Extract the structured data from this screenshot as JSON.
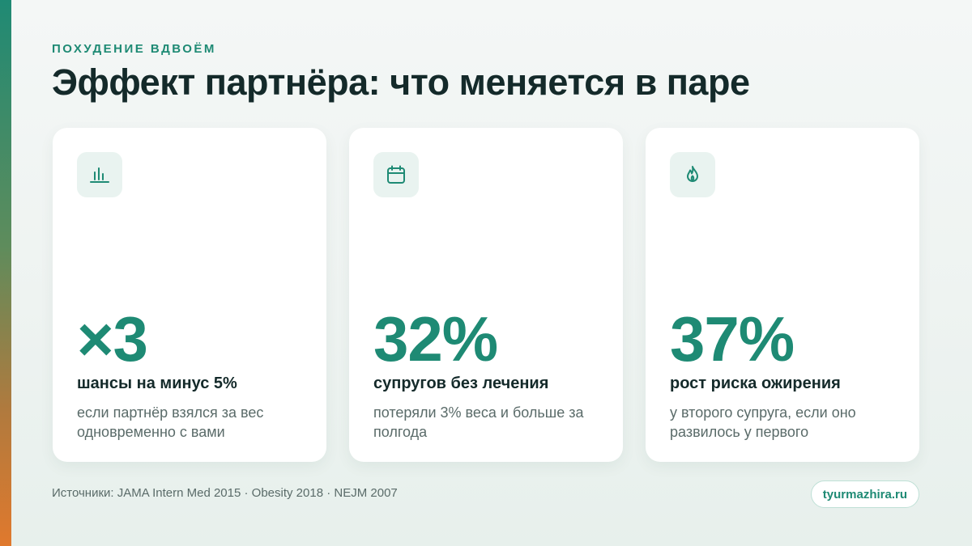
{
  "header": {
    "eyebrow": "ПОХУДЕНИЕ ВДВОЁМ",
    "title": "Эффект партнёра: что меняется в паре"
  },
  "cards": [
    {
      "icon": "bar-chart-icon",
      "value": "×3",
      "label": "шансы на минус 5%",
      "description": "если партнёр взялся за вес одновременно с вами"
    },
    {
      "icon": "calendar-icon",
      "value": "32%",
      "label": "супругов без лечения",
      "description": "потеряли 3% веса и больше за полгода"
    },
    {
      "icon": "flame-icon",
      "value": "37%",
      "label": "рост риска ожирения",
      "description": "у второго супруга, если оно развилось у первого"
    }
  ],
  "footer": {
    "sources": "Источники: JAMA Intern Med 2015 · Obesity 2018 · NEJM 2007",
    "site": "tyurmazhira.ru"
  },
  "colors": {
    "accent": "#1e8a74",
    "heading": "#142a2a",
    "muted": "#5a6b69",
    "icon_bg": "#e9f3f0",
    "side_bar_top": "#1f8a74",
    "side_bar_bottom": "#e0792d"
  }
}
